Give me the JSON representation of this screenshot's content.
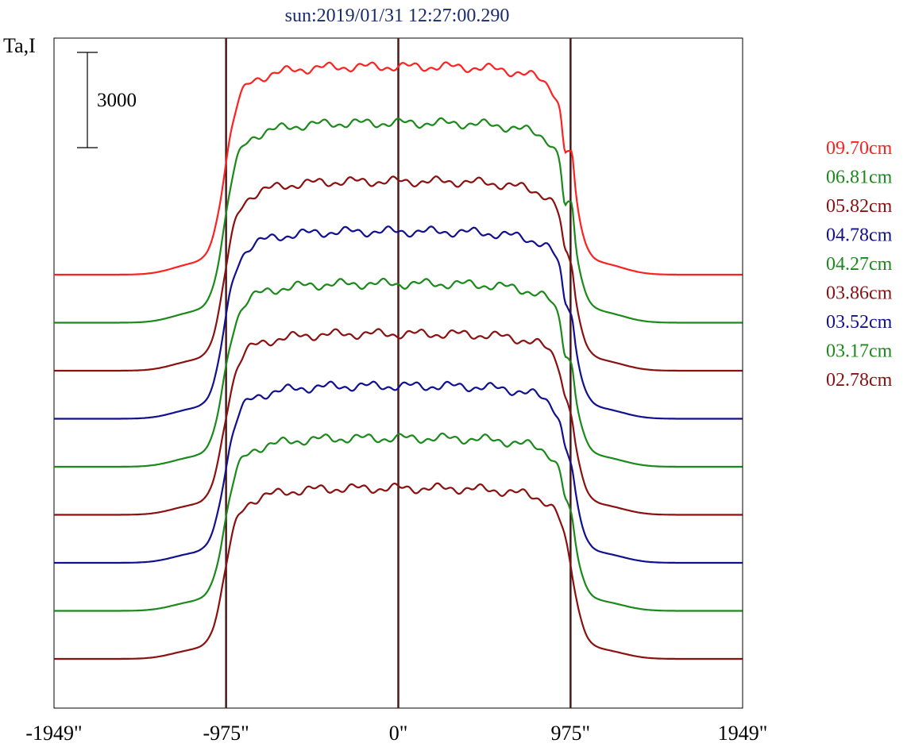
{
  "chart_data": {
    "type": "line",
    "title": "sun:2019/01/31 12:27:00.290",
    "ylabel": "Ta,I",
    "scale_bar_label": "3000",
    "x_ticks": [
      "-1949\"",
      "-975\"",
      "0\"",
      "975\"",
      "1949\""
    ],
    "x_tick_values": [
      -1949,
      -975,
      0,
      975,
      1949
    ],
    "xlim": [
      -1949,
      1949
    ],
    "vertical_lines_at": [
      -975,
      0,
      975
    ],
    "vertical_line_color": "#4a1a1a",
    "grid": false,
    "legend_placement": "right",
    "series": [
      {
        "name": "09.70cm",
        "color": "#ff2020",
        "offset": 0,
        "plateau": 1.0,
        "limb": "strong"
      },
      {
        "name": "06.81cm",
        "color": "#1a8a1a",
        "offset": 1,
        "plateau": 0.96,
        "limb": "strong"
      },
      {
        "name": "05.82cm",
        "color": "#8b1010",
        "offset": 2,
        "plateau": 0.91,
        "limb": "medium"
      },
      {
        "name": "04.78cm",
        "color": "#101090",
        "offset": 3,
        "plateau": 0.9,
        "limb": "medium"
      },
      {
        "name": "04.27cm",
        "color": "#1a8a1a",
        "offset": 4,
        "plateau": 0.88,
        "limb": "medium"
      },
      {
        "name": "03.86cm",
        "color": "#8b1010",
        "offset": 5,
        "plateau": 0.87,
        "limb": "weak"
      },
      {
        "name": "03.52cm",
        "color": "#101090",
        "offset": 6,
        "plateau": 0.85,
        "limb": "weak"
      },
      {
        "name": "03.17cm",
        "color": "#1a8a1a",
        "offset": 7,
        "plateau": 0.83,
        "limb": "weak"
      },
      {
        "name": "02.78cm",
        "color": "#8b1010",
        "offset": 8,
        "plateau": 0.82,
        "limb": "none"
      }
    ]
  }
}
